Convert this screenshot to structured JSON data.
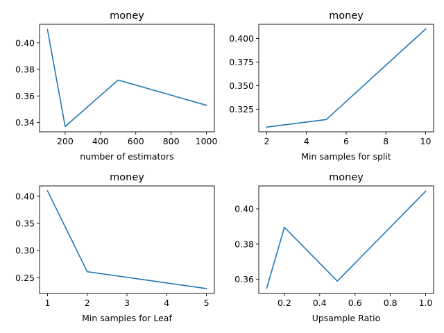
{
  "figure": {
    "background": "#ffffff",
    "line_color": "#1f77b4"
  },
  "chart_data": [
    {
      "type": "line",
      "title": "money",
      "xlabel": "number of estimators",
      "ylabel": "",
      "x": [
        100,
        200,
        500,
        1000
      ],
      "series": [
        {
          "values": [
            0.41,
            0.337,
            0.372,
            0.353
          ]
        }
      ],
      "xlim": [
        55,
        1045
      ],
      "ylim": [
        0.333,
        0.414
      ],
      "xticks": [
        200,
        400,
        600,
        800,
        1000
      ],
      "xtick_labels": [
        "200",
        "400",
        "600",
        "800",
        "1000"
      ],
      "yticks": [
        0.34,
        0.36,
        0.38,
        0.4
      ],
      "ytick_labels": [
        "0.34",
        "0.36",
        "0.38",
        "0.40"
      ]
    },
    {
      "type": "line",
      "title": "money",
      "xlabel": "Min samples for split",
      "ylabel": "",
      "x": [
        2,
        5,
        10
      ],
      "series": [
        {
          "values": [
            0.306,
            0.314,
            0.41
          ]
        }
      ],
      "xlim": [
        1.6,
        10.4
      ],
      "ylim": [
        0.301,
        0.415
      ],
      "xticks": [
        2,
        4,
        6,
        8,
        10
      ],
      "xtick_labels": [
        "2",
        "4",
        "6",
        "8",
        "10"
      ],
      "yticks": [
        0.325,
        0.35,
        0.375,
        0.4
      ],
      "ytick_labels": [
        "0.325",
        "0.350",
        "0.375",
        "0.400"
      ]
    },
    {
      "type": "line",
      "title": "money",
      "xlabel": "Min samples for Leaf",
      "ylabel": "",
      "x": [
        1,
        2,
        5
      ],
      "series": [
        {
          "values": [
            0.41,
            0.261,
            0.23
          ]
        }
      ],
      "xlim": [
        0.8,
        5.2
      ],
      "ylim": [
        0.221,
        0.419
      ],
      "xticks": [
        1,
        2,
        3,
        4,
        5
      ],
      "xtick_labels": [
        "1",
        "2",
        "3",
        "4",
        "5"
      ],
      "yticks": [
        0.25,
        0.3,
        0.35,
        0.4
      ],
      "ytick_labels": [
        "0.25",
        "0.30",
        "0.35",
        "0.40"
      ]
    },
    {
      "type": "line",
      "title": "money",
      "xlabel": "Upsample Ratio",
      "ylabel": "",
      "x": [
        0.1,
        0.2,
        0.5,
        1.0
      ],
      "series": [
        {
          "values": [
            0.355,
            0.3895,
            0.359,
            0.41
          ]
        }
      ],
      "xlim": [
        0.055,
        1.045
      ],
      "ylim": [
        0.352,
        0.413
      ],
      "xticks": [
        0.2,
        0.4,
        0.6,
        0.8,
        1.0
      ],
      "xtick_labels": [
        "0.2",
        "0.4",
        "0.6",
        "0.8",
        "1.0"
      ],
      "yticks": [
        0.36,
        0.38,
        0.4
      ],
      "ytick_labels": [
        "0.36",
        "0.38",
        "0.40"
      ]
    }
  ]
}
